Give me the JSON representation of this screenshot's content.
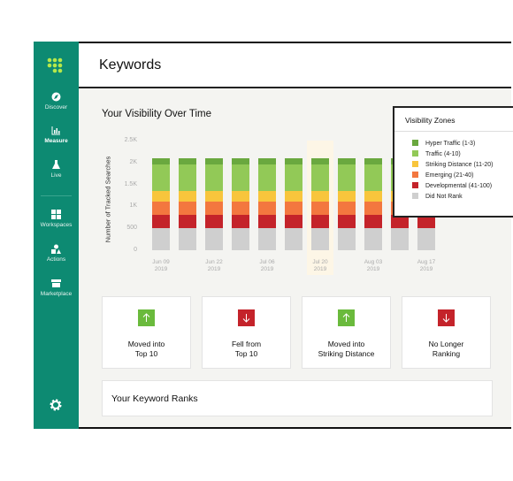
{
  "sidebar": {
    "items": [
      "Discover",
      "Measure",
      "Live",
      "Workspaces",
      "Actions",
      "Marketplace"
    ]
  },
  "header": {
    "title": "Keywords"
  },
  "chart_data": {
    "type": "bar",
    "stacked": true,
    "title": "Your Visibility Over Time",
    "ylabel": "Number of Tracked Searches",
    "legend_title": "Visibility Zones",
    "grid": false,
    "categories": [
      "Jun 09 2019",
      null,
      "Jun 22 2019",
      null,
      "Jul 06 2019",
      null,
      "Jul 20 2019",
      null,
      "Aug 03 2019",
      null,
      "Aug 17 2019"
    ],
    "series": [
      {
        "name": "Hyper Traffic (1-3)",
        "color": "#6aa83f",
        "values": [
          150,
          150,
          150,
          150,
          150,
          150,
          150,
          150,
          150,
          150,
          150
        ]
      },
      {
        "name": "Traffic (4-10)",
        "color": "#92c957",
        "values": [
          600,
          600,
          600,
          600,
          600,
          600,
          600,
          600,
          600,
          600,
          600
        ]
      },
      {
        "name": "Striking Distance (11-20)",
        "color": "#f8c53c",
        "values": [
          250,
          250,
          250,
          250,
          250,
          250,
          250,
          250,
          250,
          250,
          250
        ]
      },
      {
        "name": "Emerging (21-40)",
        "color": "#f3773f",
        "values": [
          300,
          300,
          300,
          300,
          300,
          300,
          300,
          300,
          300,
          300,
          300
        ]
      },
      {
        "name": "Developmental (41-100)",
        "color": "#c4232a",
        "values": [
          300,
          300,
          300,
          300,
          300,
          300,
          300,
          300,
          300,
          300,
          300
        ]
      },
      {
        "name": "Did Not Rank",
        "color": "#cfcfcf",
        "values": [
          500,
          500,
          500,
          500,
          500,
          500,
          500,
          500,
          500,
          500,
          500
        ]
      }
    ],
    "ylim": [
      0,
      2500
    ],
    "yticks": [
      0,
      500,
      {
        "value": 1000,
        "label": "1K"
      },
      {
        "value": 1500,
        "label": "1.5K"
      },
      {
        "value": 2000,
        "label": "2K"
      },
      {
        "value": 2500,
        "label": "2.5K"
      }
    ]
  },
  "cards": [
    {
      "label": [
        "Moved into",
        "Top 10"
      ]
    },
    {
      "label": [
        "Fell from",
        "Top 10"
      ]
    },
    {
      "label": [
        "Moved into",
        "Striking Distance"
      ]
    },
    {
      "label": [
        "No Longer",
        "Ranking"
      ]
    }
  ],
  "ranks_title": "Your Keyword Ranks"
}
